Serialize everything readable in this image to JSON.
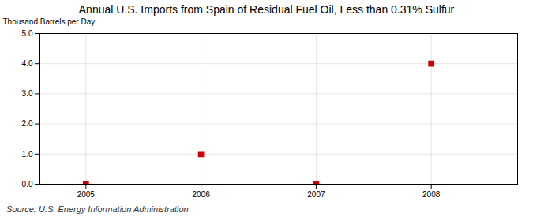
{
  "chart_data": {
    "type": "scatter",
    "title": "Annual U.S. Imports from Spain of Residual Fuel Oil, Less than 0.31% Sulfur",
    "ylabel": "Thousand Barrels per Day",
    "source": "Source: U.S. Energy Information Administration",
    "x": [
      2005,
      2006,
      2007,
      2008
    ],
    "values": [
      0,
      1.0,
      0,
      4.0
    ],
    "color": "#cc0000",
    "marker": "square",
    "xlim": [
      2004.6,
      2008.75
    ],
    "xticks": [
      2005,
      2006,
      2007,
      2008
    ],
    "ylim": [
      0,
      5.0
    ],
    "yticks": [
      {
        "value": 0.0,
        "label": "0.0"
      },
      {
        "value": 1.0,
        "label": "1.0"
      },
      {
        "value": 2.0,
        "label": "2.0"
      },
      {
        "value": 3.0,
        "label": "3.0"
      },
      {
        "value": 4.0,
        "label": "4.0"
      },
      {
        "value": 5.0,
        "label": "5.0"
      }
    ],
    "grid": true
  }
}
